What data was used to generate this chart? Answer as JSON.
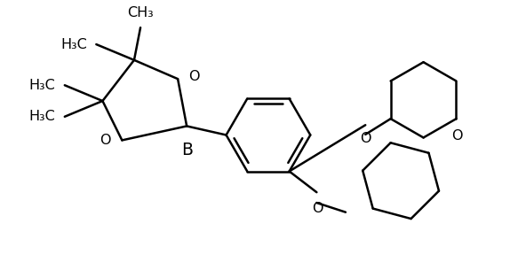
{
  "bg_color": "#ffffff",
  "line_color": "#000000",
  "lw": 1.8,
  "fs": 11.5,
  "figsize": [
    5.92,
    3.05
  ],
  "dpi": 100,
  "xlim": [
    0,
    10
  ],
  "ylim": [
    0,
    5.1
  ]
}
